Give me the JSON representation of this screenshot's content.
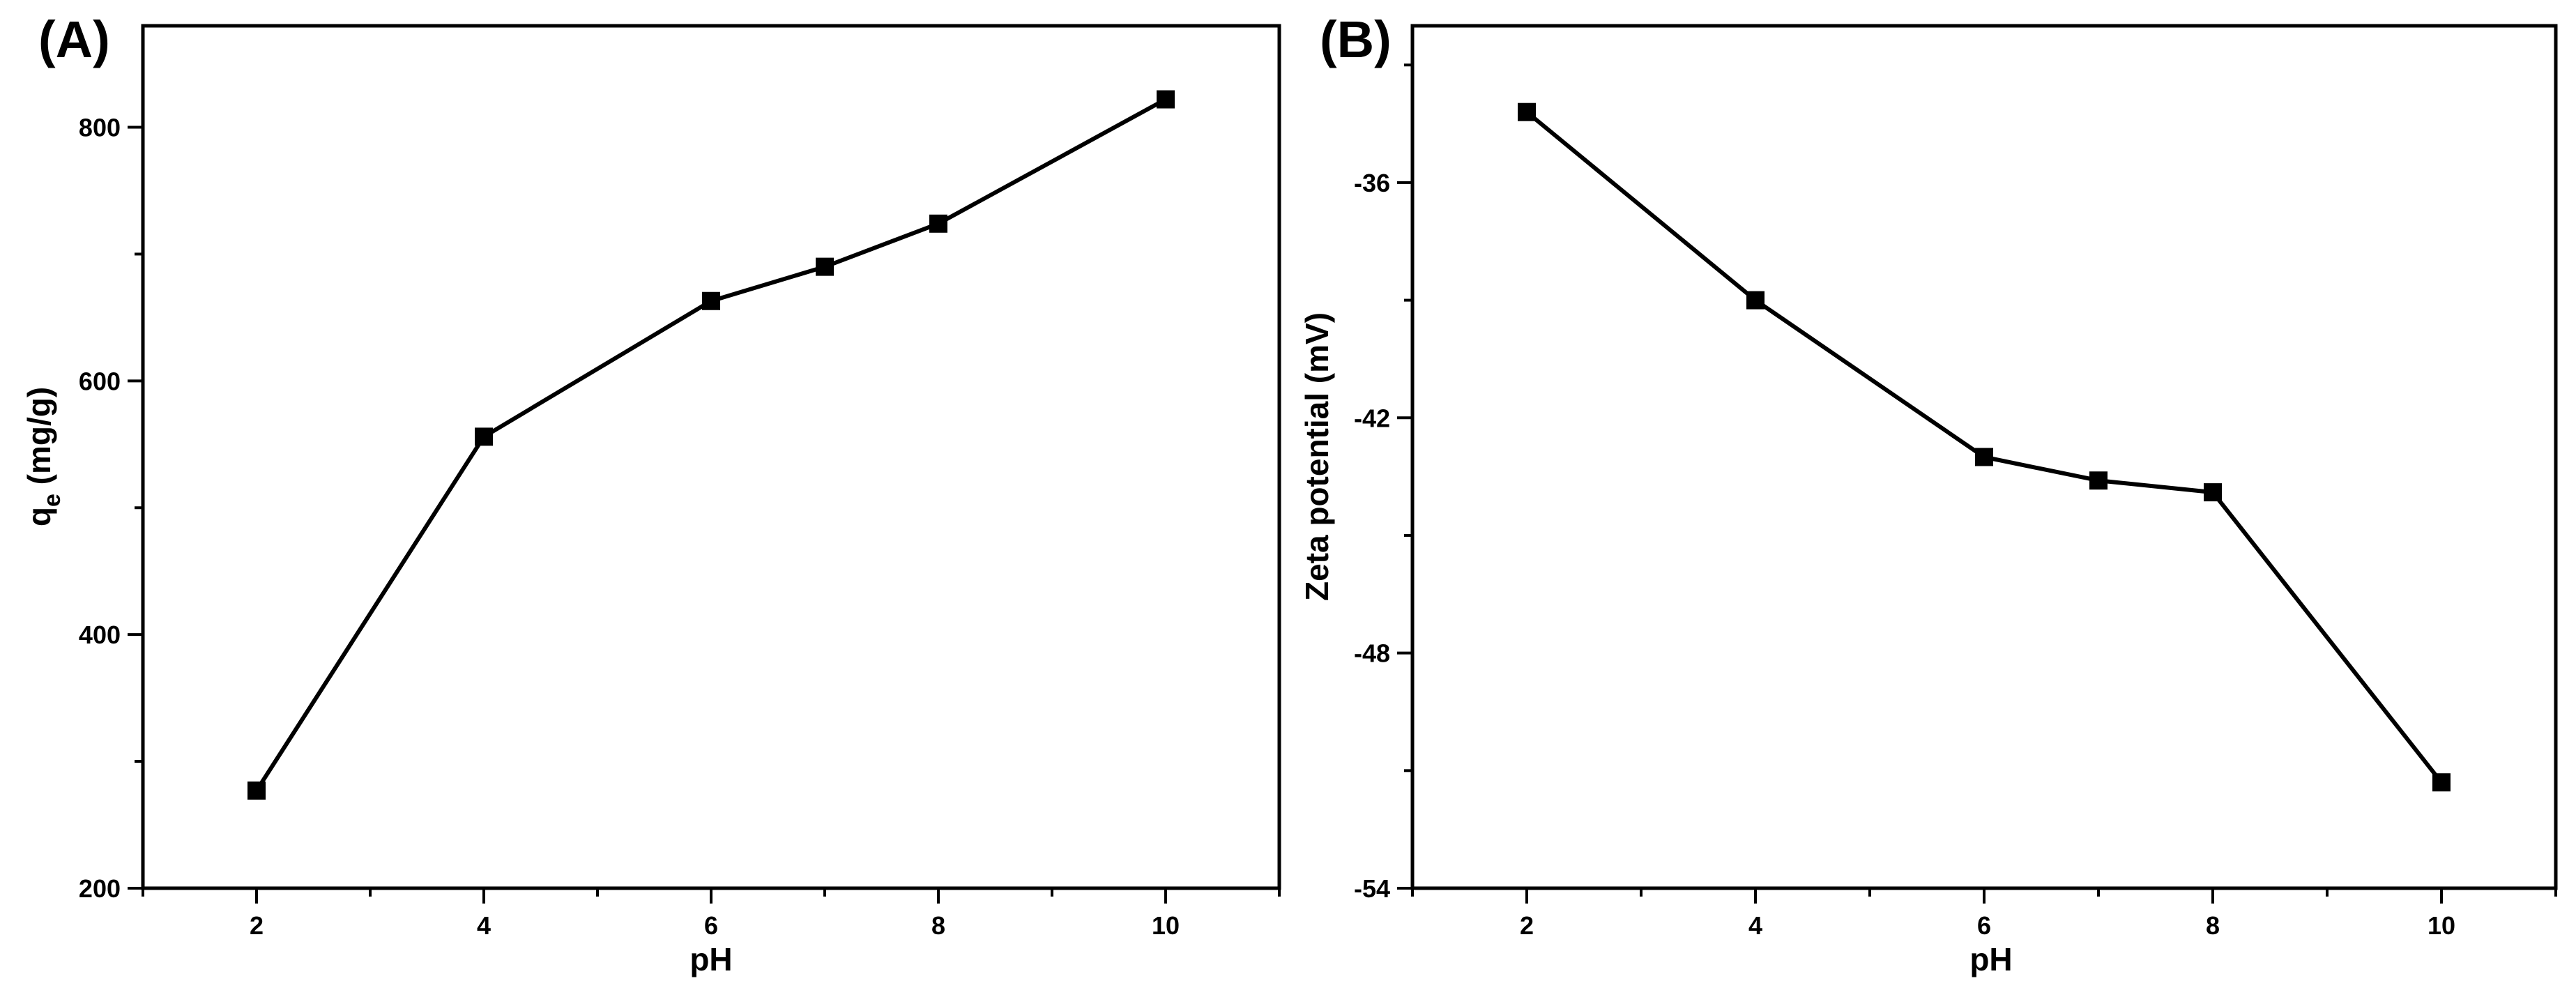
{
  "colors": {
    "line": "#000000",
    "marker": "#000000",
    "axis": "#000000",
    "background": "#ffffff"
  },
  "chart_data": [
    {
      "panel_label": "(A)",
      "type": "line",
      "title": "",
      "xlabel": "pH",
      "ylabel_main": "q",
      "ylabel_sub": "e",
      "ylabel_rest": " (mg/g)",
      "xlim": [
        1,
        11
      ],
      "ylim": [
        200,
        880
      ],
      "x_ticks": [
        2,
        4,
        6,
        8,
        10
      ],
      "y_ticks": [
        200,
        400,
        600,
        800
      ],
      "grid": false,
      "legend": "none",
      "marker": "square",
      "series": [
        {
          "name": "qe",
          "x": [
            2,
            4,
            6,
            7,
            8,
            10
          ],
          "y": [
            277,
            556,
            663,
            690,
            724,
            822
          ]
        }
      ]
    },
    {
      "panel_label": "(B)",
      "type": "line",
      "title": "",
      "xlabel": "pH",
      "ylabel": "Zeta potential (mV)",
      "xlim": [
        1,
        11
      ],
      "ylim": [
        -54,
        -32
      ],
      "x_ticks": [
        2,
        4,
        6,
        8,
        10
      ],
      "y_ticks": [
        -54,
        -48,
        -42,
        -36
      ],
      "grid": false,
      "legend": "none",
      "marker": "square",
      "series": [
        {
          "name": "Zeta potential",
          "x": [
            2,
            4,
            6,
            7,
            8,
            10
          ],
          "y": [
            -34.2,
            -39.0,
            -43.0,
            -43.6,
            -43.9,
            -51.3
          ]
        }
      ]
    }
  ]
}
